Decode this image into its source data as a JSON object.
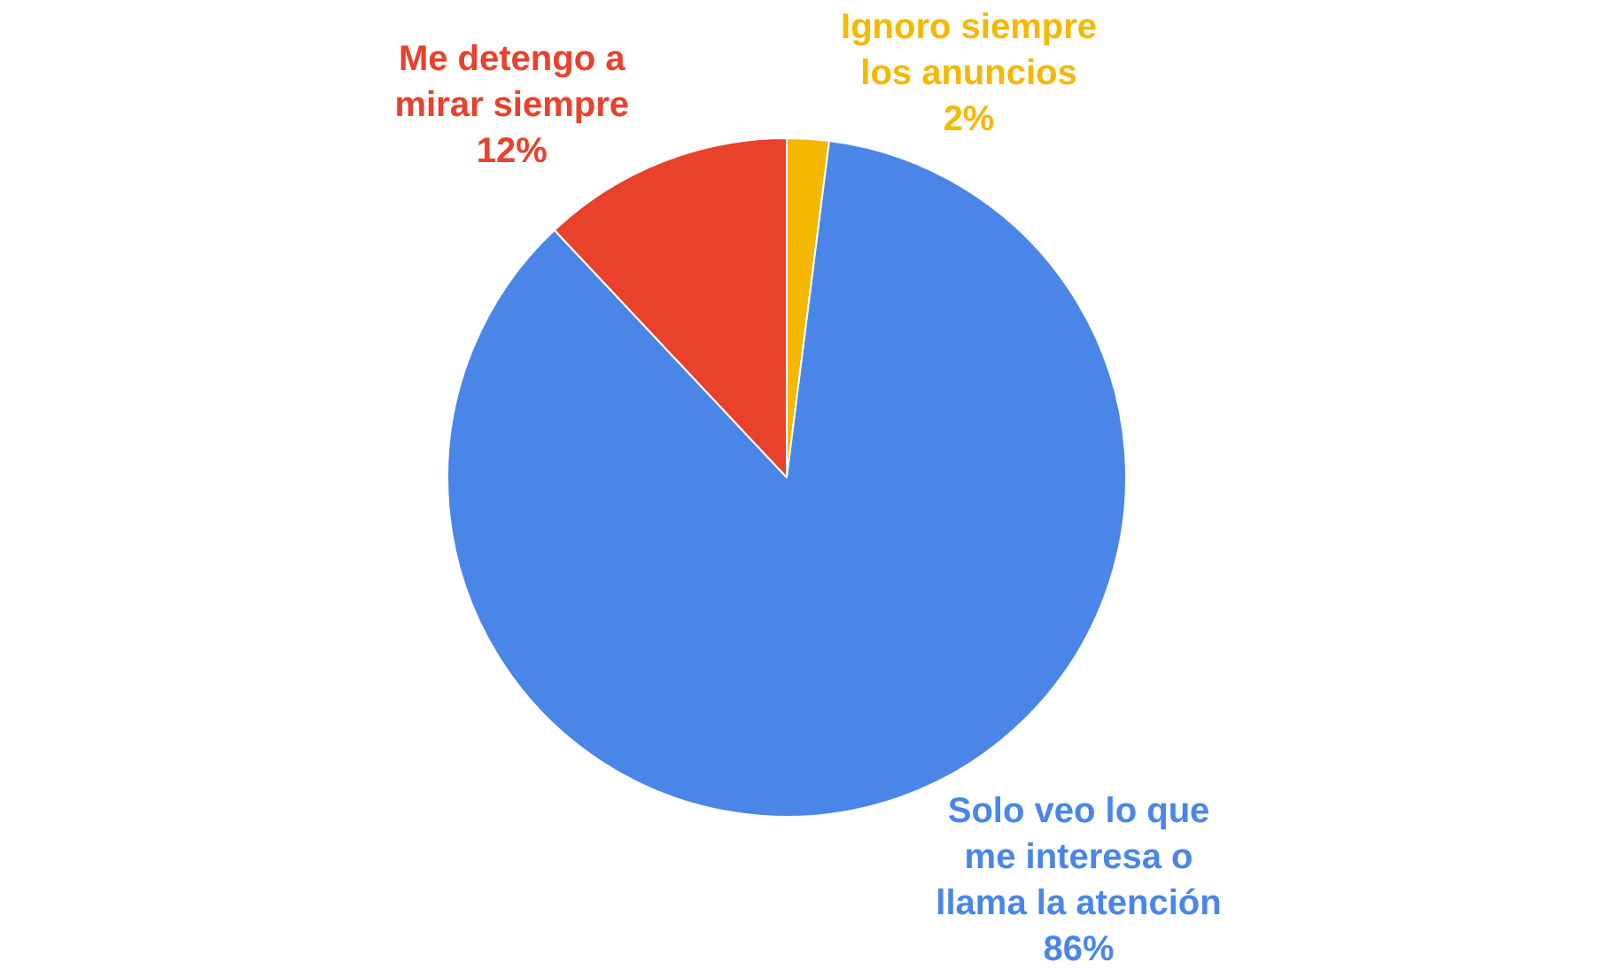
{
  "chart_data": {
    "type": "pie",
    "categories": [
      "Ignoro siempre los anuncios",
      "Solo veo lo que me interesa o llama la atención",
      "Me detengo a mirar siempre"
    ],
    "values": [
      2,
      86,
      12
    ],
    "value_labels": [
      "2%",
      "86%",
      "12%"
    ],
    "colors": [
      "#f5b800",
      "#4a86e8",
      "#e8412c"
    ],
    "legend": false
  }
}
